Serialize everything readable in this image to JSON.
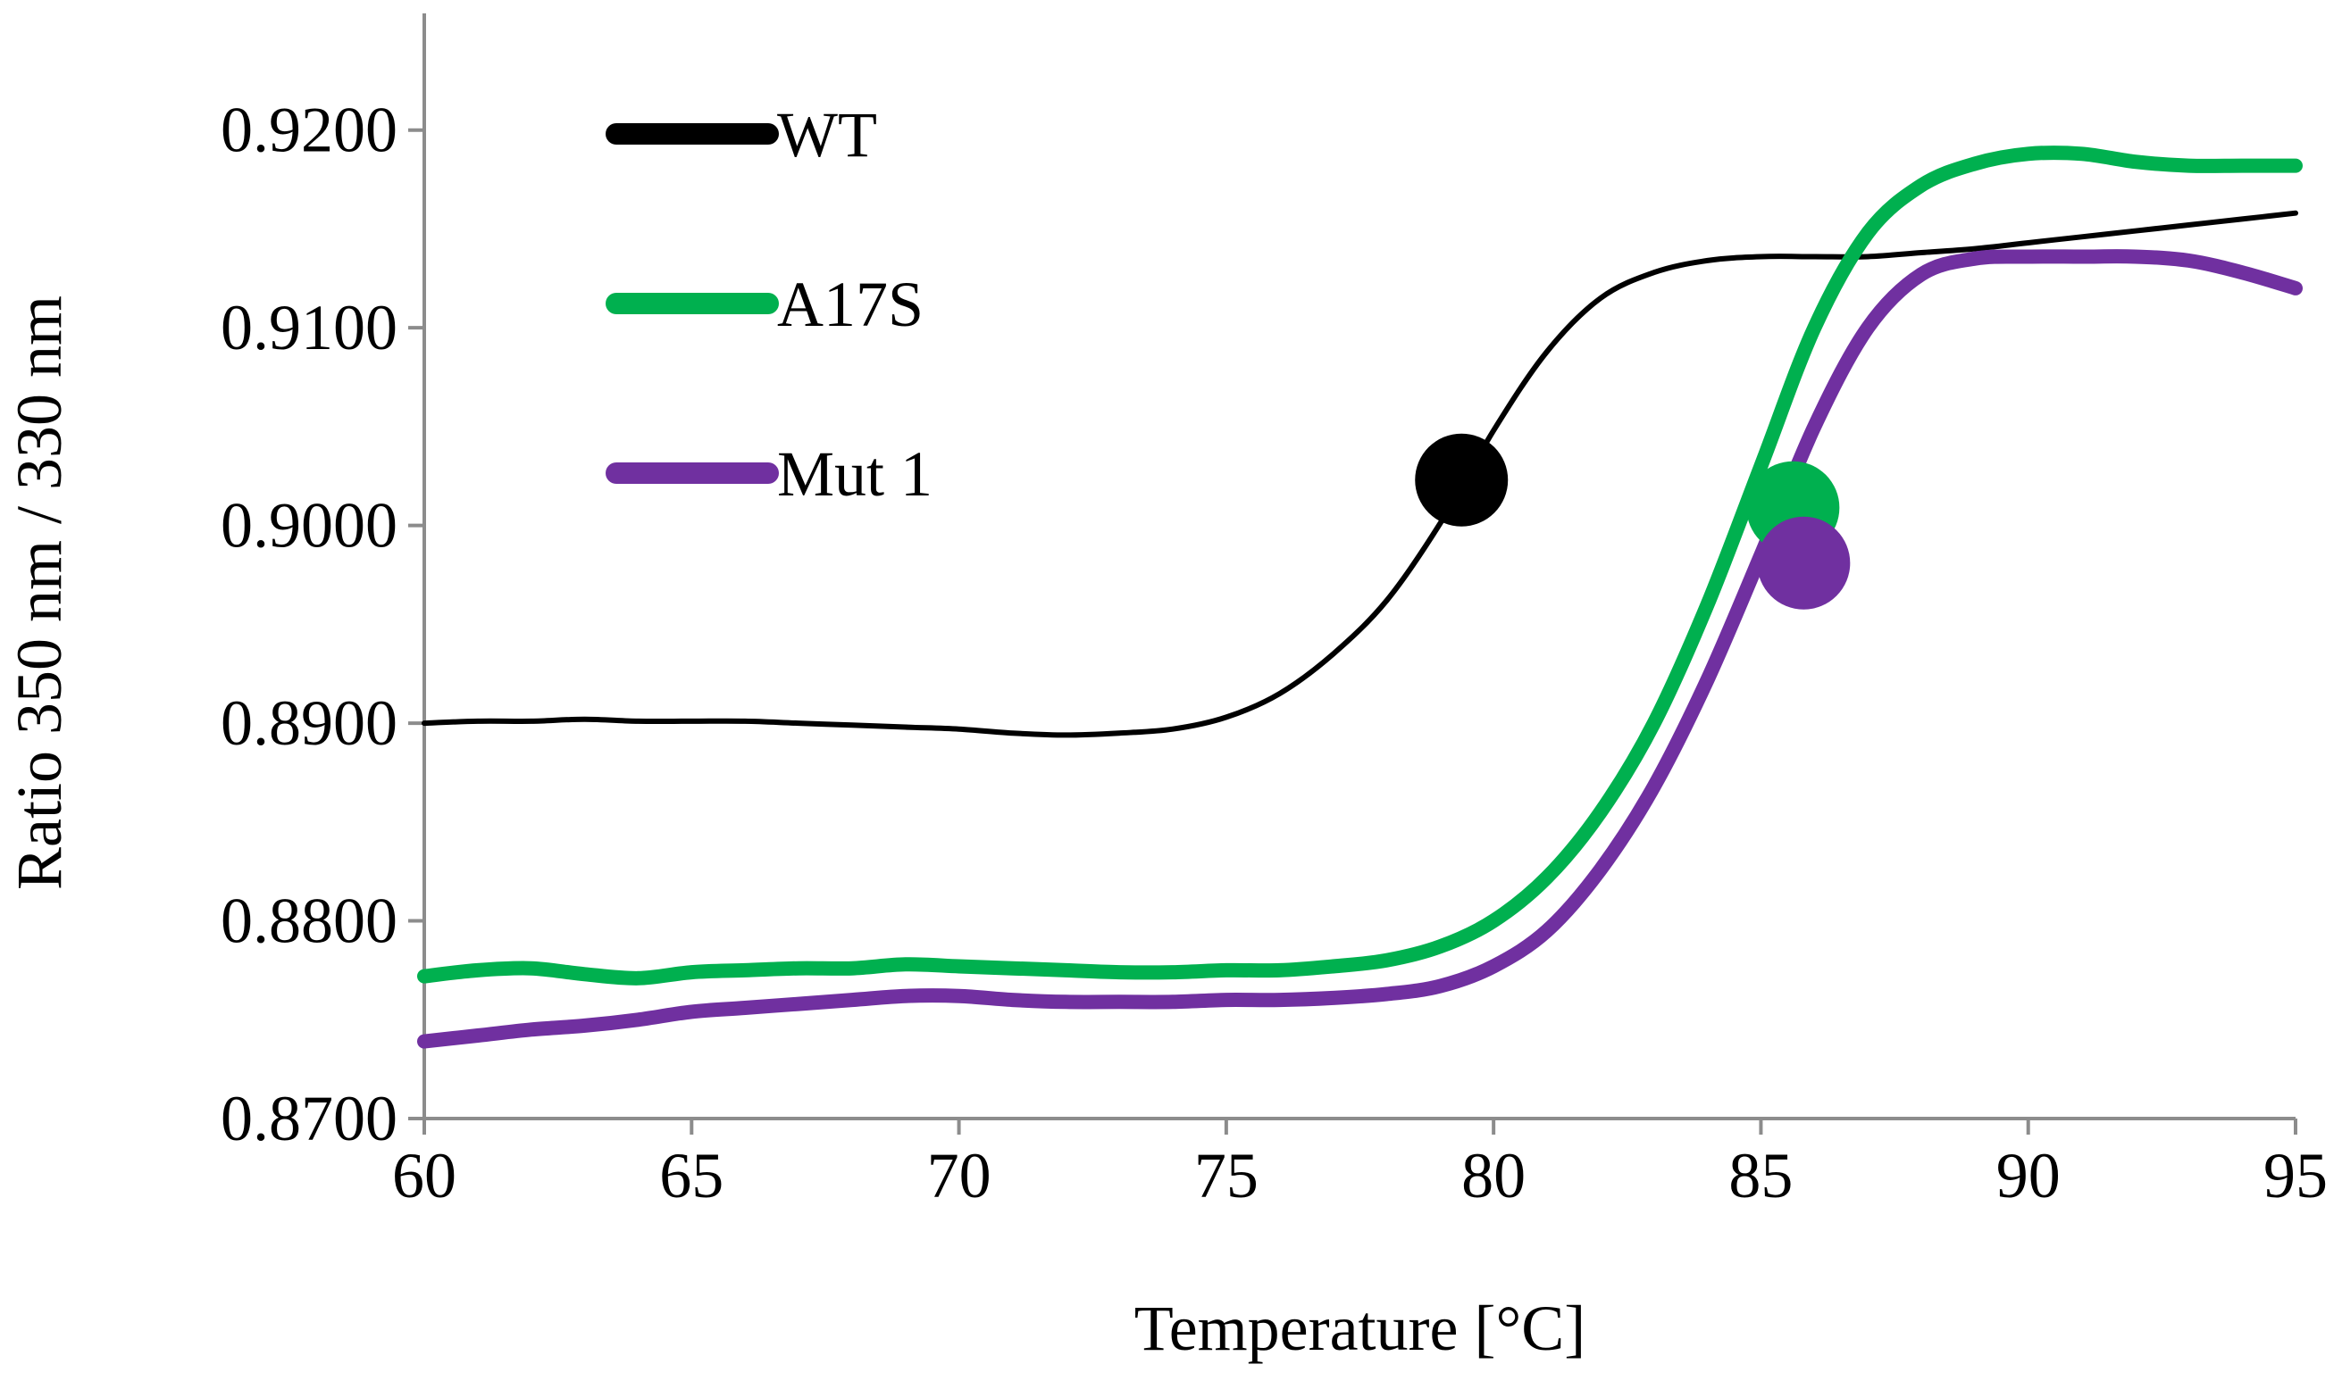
{
  "chart_data": {
    "type": "line",
    "title": "",
    "xlabel": "Temperature [°C]",
    "ylabel": "Ratio 350  nm / 330  nm",
    "xlim": [
      60,
      95
    ],
    "ylim": [
      0.87,
      0.925
    ],
    "x_ticks": [
      60,
      65,
      70,
      75,
      80,
      85,
      90,
      95
    ],
    "x_tick_labels": [
      "60",
      "65",
      "70",
      "75",
      "80",
      "85",
      "90",
      "95"
    ],
    "y_ticks": [
      0.87,
      0.88,
      0.89,
      0.9,
      0.91,
      0.92
    ],
    "y_tick_labels": [
      "0.8700",
      "0.8800",
      "0.8900",
      "0.9000",
      "0.9100",
      "0.9200"
    ],
    "grid": false,
    "legend_position": "top-left",
    "series": [
      {
        "name": "WT",
        "color": "#000000",
        "x": [
          60,
          61,
          62,
          63,
          64,
          65,
          66,
          67,
          68,
          69,
          70,
          71,
          72,
          73,
          74,
          75,
          76,
          77,
          78,
          79,
          80,
          81,
          82,
          83,
          84,
          85,
          86,
          87,
          88,
          89,
          90,
          91,
          92,
          93,
          94,
          95
        ],
        "y": [
          0.89,
          0.8901,
          0.8901,
          0.8902,
          0.8901,
          0.8901,
          0.8901,
          0.89,
          0.8899,
          0.8898,
          0.8897,
          0.8895,
          0.8894,
          0.8895,
          0.8897,
          0.8903,
          0.8915,
          0.8935,
          0.8962,
          0.9001,
          0.9048,
          0.9088,
          0.9115,
          0.9128,
          0.9134,
          0.9136,
          0.9136,
          0.9136,
          0.9138,
          0.914,
          0.9143,
          0.9146,
          0.9149,
          0.9152,
          0.9155,
          0.9158
        ],
        "tm": {
          "x": 79.4,
          "y": 0.9023
        }
      },
      {
        "name": "A17S",
        "color": "#00b04f",
        "x": [
          60,
          61,
          62,
          63,
          64,
          65,
          66,
          67,
          68,
          69,
          70,
          71,
          72,
          73,
          74,
          75,
          76,
          77,
          78,
          79,
          80,
          81,
          82,
          83,
          84,
          85,
          86,
          87,
          88,
          89,
          90,
          91,
          92,
          93,
          94,
          95
        ],
        "y": [
          0.8772,
          0.8775,
          0.8776,
          0.8773,
          0.8771,
          0.8774,
          0.8775,
          0.8776,
          0.8776,
          0.8778,
          0.8777,
          0.8776,
          0.8775,
          0.8774,
          0.8774,
          0.8775,
          0.8775,
          0.8777,
          0.878,
          0.8787,
          0.88,
          0.8822,
          0.8855,
          0.89,
          0.896,
          0.903,
          0.91,
          0.9148,
          0.9172,
          0.9183,
          0.9188,
          0.9188,
          0.9184,
          0.9182,
          0.9182,
          0.9182
        ],
        "tm": {
          "x": 85.6,
          "y": 0.9009
        }
      },
      {
        "name": "Mut 1",
        "color": "#7030a0",
        "x": [
          60,
          61,
          62,
          63,
          64,
          65,
          66,
          67,
          68,
          69,
          70,
          71,
          72,
          73,
          74,
          75,
          76,
          77,
          78,
          79,
          80,
          81,
          82,
          83,
          84,
          85,
          86,
          87,
          88,
          89,
          90,
          91,
          92,
          93,
          94,
          95
        ],
        "y": [
          0.8739,
          0.8742,
          0.8745,
          0.8747,
          0.875,
          0.8754,
          0.8756,
          0.8758,
          0.876,
          0.8762,
          0.8762,
          0.876,
          0.8759,
          0.8759,
          0.8759,
          0.876,
          0.876,
          0.8761,
          0.8763,
          0.8767,
          0.8777,
          0.8795,
          0.8826,
          0.8868,
          0.8922,
          0.8985,
          0.905,
          0.91,
          0.9127,
          0.9135,
          0.9136,
          0.9136,
          0.9136,
          0.9134,
          0.9128,
          0.912
        ],
        "tm": {
          "x": 85.8,
          "y": 0.8981
        }
      }
    ]
  }
}
